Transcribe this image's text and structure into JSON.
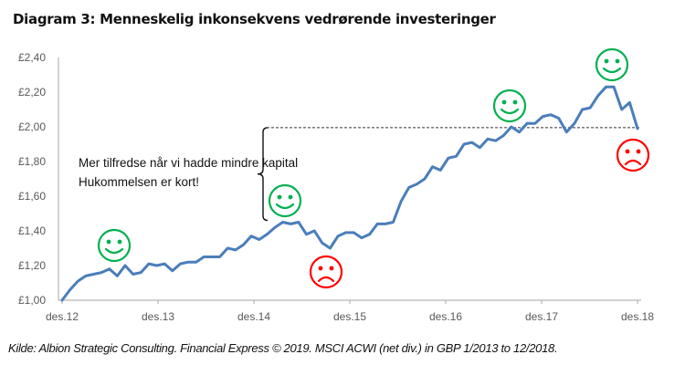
{
  "chart_data": {
    "type": "line",
    "title": "Diagram 3: Menneskelig inkonsekvens vedrørende investeringer",
    "xlabel": "",
    "ylabel": "",
    "ylim": [
      1.0,
      2.4
    ],
    "yticks": [
      "£1,00",
      "£1,20",
      "£1,40",
      "£1,60",
      "£1,80",
      "£2,00",
      "£2,20",
      "£2,40"
    ],
    "ytick_values": [
      1.0,
      1.2,
      1.4,
      1.6,
      1.8,
      2.0,
      2.2,
      2.4
    ],
    "xticks": [
      "des.12",
      "des.13",
      "des.14",
      "des.15",
      "des.16",
      "des.17",
      "des.18"
    ],
    "grid": false,
    "series": [
      {
        "name": "MSCI ACWI (net div.) in GBP",
        "color": "#4A7EBB",
        "start": "des.12",
        "frequency": "monthly",
        "values": [
          1.0,
          1.06,
          1.11,
          1.14,
          1.15,
          1.16,
          1.18,
          1.14,
          1.2,
          1.15,
          1.16,
          1.21,
          1.2,
          1.21,
          1.17,
          1.21,
          1.22,
          1.22,
          1.25,
          1.25,
          1.25,
          1.3,
          1.29,
          1.32,
          1.37,
          1.35,
          1.38,
          1.42,
          1.45,
          1.44,
          1.45,
          1.38,
          1.4,
          1.33,
          1.3,
          1.37,
          1.39,
          1.39,
          1.36,
          1.38,
          1.44,
          1.44,
          1.45,
          1.57,
          1.65,
          1.67,
          1.7,
          1.77,
          1.75,
          1.82,
          1.83,
          1.9,
          1.91,
          1.88,
          1.93,
          1.92,
          1.95,
          2.0,
          1.97,
          2.02,
          2.02,
          2.06,
          2.07,
          2.05,
          1.97,
          2.02,
          2.1,
          2.11,
          2.18,
          2.23,
          2.23,
          2.1,
          2.14,
          1.99
        ]
      }
    ],
    "reference_line": {
      "value": 1.99,
      "style": "dashed",
      "label": ""
    },
    "annotations": [
      {
        "text": "Mer tilfredse når vi hadde mindre kapital",
        "type": "text"
      },
      {
        "text": "Hukommelsen er kort!",
        "type": "text"
      }
    ],
    "markers": [
      {
        "type": "happy-face",
        "color": "#00B050",
        "near": "des.13 (Jul 2013)"
      },
      {
        "type": "happy-face",
        "color": "#00B050",
        "near": "des.14 (Jun 2014)"
      },
      {
        "type": "sad-face",
        "color": "#FF0000",
        "near": "des.15 (Nov 2014 low)"
      },
      {
        "type": "happy-face",
        "color": "#00B050",
        "near": "des.17 (Sep 2016)"
      },
      {
        "type": "happy-face",
        "color": "#00B050",
        "near": "des.18 (Sep 2017 peak)"
      },
      {
        "type": "sad-face",
        "color": "#FF0000",
        "near": "des.18 (Dec 2018 end)"
      }
    ]
  },
  "header": {
    "title": "Diagram 3: Menneskelig inkonsekvens vedrørende investeringer"
  },
  "footer": {
    "source": "Kilde: Albion Strategic Consulting.  Financial Express © 2019. MSCI ACWI (net div.) in GBP 1/2013 to 12/2018."
  },
  "colors": {
    "line": "#4A7EBB",
    "happy": "#00B050",
    "sad": "#FF0000",
    "axis": "#A6A6A6"
  }
}
